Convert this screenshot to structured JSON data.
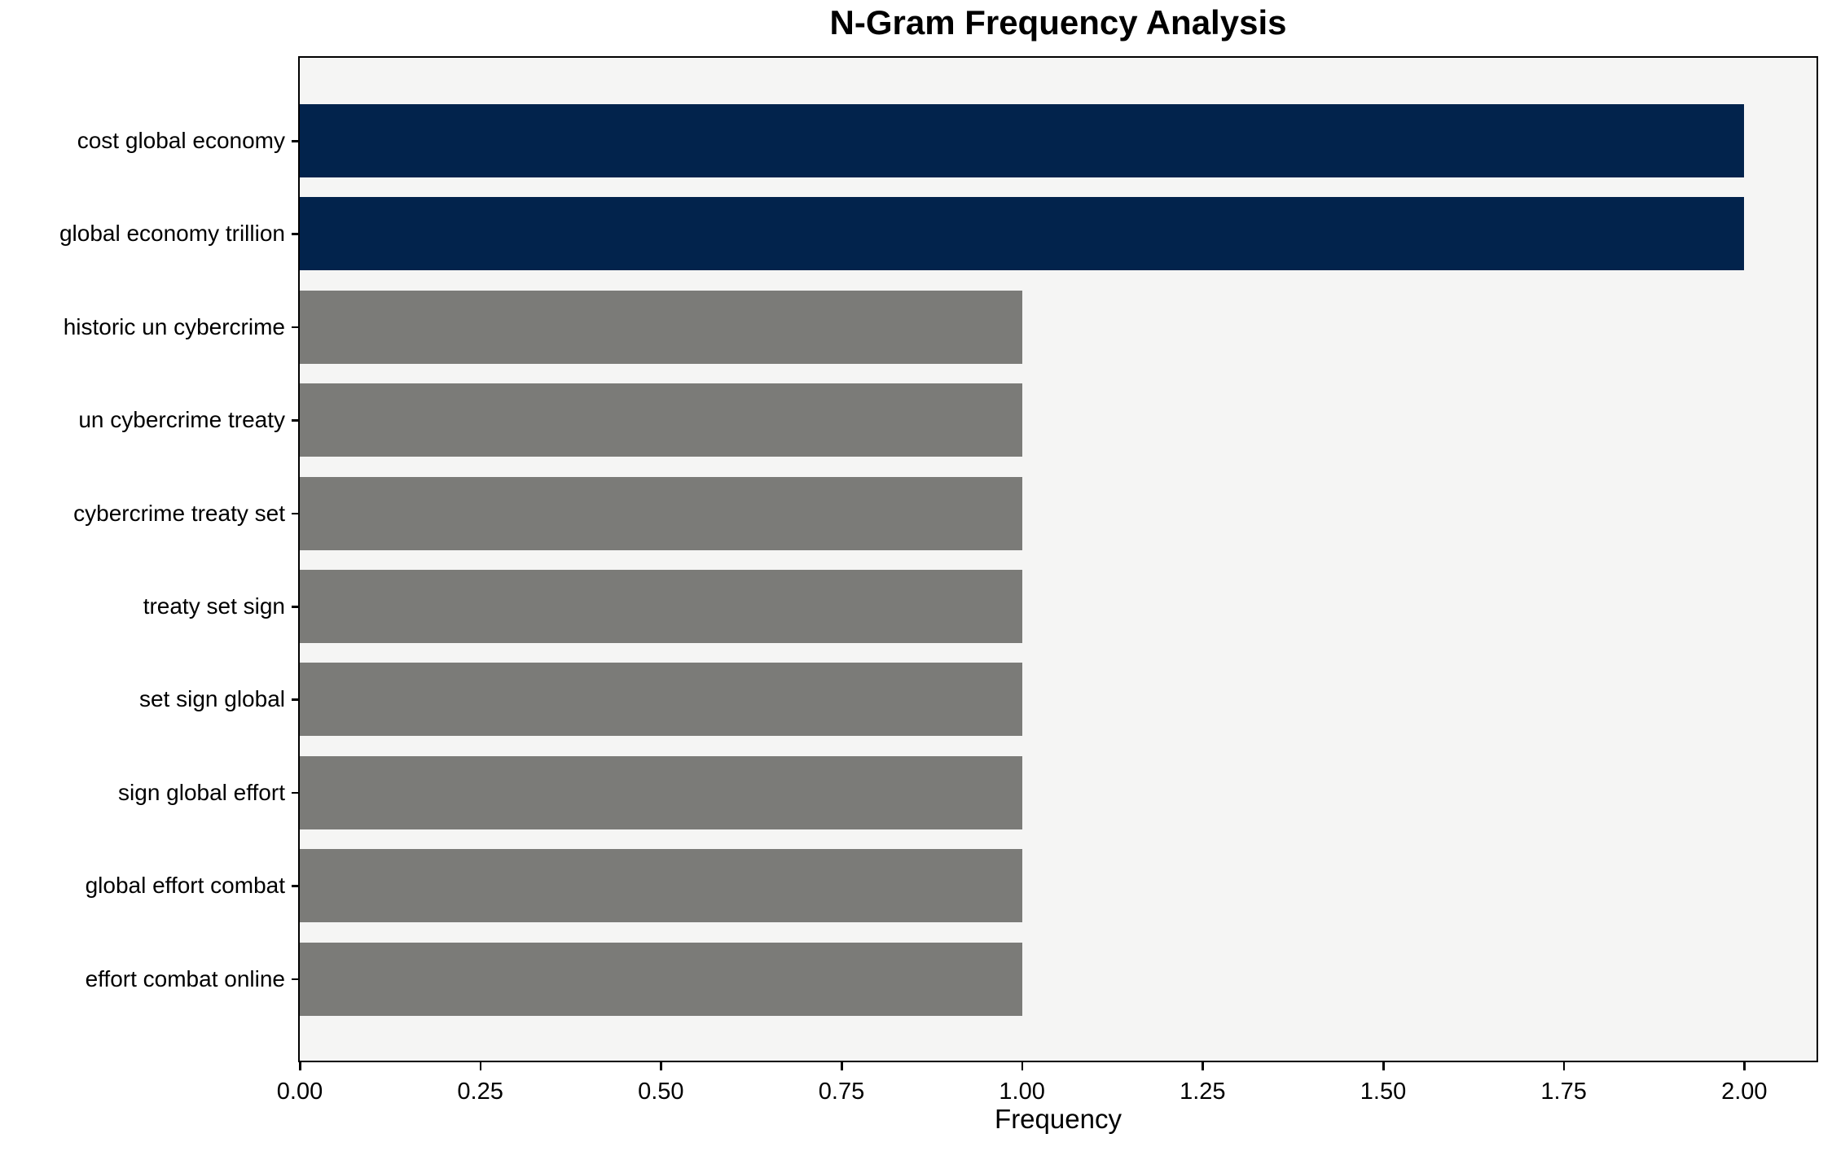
{
  "chart_data": {
    "type": "bar",
    "orientation": "horizontal",
    "title": "N-Gram Frequency Analysis",
    "xlabel": "Frequency",
    "ylabel": "",
    "categories": [
      "cost global economy",
      "global economy trillion",
      "historic un cybercrime",
      "un cybercrime treaty",
      "cybercrime treaty set",
      "treaty set sign",
      "set sign global",
      "sign global effort",
      "global effort combat",
      "effort combat online"
    ],
    "values": [
      2,
      2,
      1,
      1,
      1,
      1,
      1,
      1,
      1,
      1
    ],
    "bar_colors": [
      "#02234c",
      "#02234c",
      "#7b7b78",
      "#7b7b78",
      "#7b7b78",
      "#7b7b78",
      "#7b7b78",
      "#7b7b78",
      "#7b7b78",
      "#7b7b78"
    ],
    "xlim": [
      0,
      2.1
    ],
    "x_tick_values": [
      0,
      0.25,
      0.5,
      0.75,
      1.0,
      1.25,
      1.5,
      1.75,
      2.0
    ],
    "x_tick_labels": [
      "0.00",
      "0.25",
      "0.50",
      "0.75",
      "1.00",
      "1.25",
      "1.50",
      "1.75",
      "2.00"
    ],
    "grid": false,
    "legend_position": "none",
    "colors": {
      "highlight": "#02234c",
      "default": "#7b7b78",
      "plot_background": "#f5f5f4",
      "figure_background": "#ffffff",
      "axis": "#000000",
      "text": "#000000"
    }
  }
}
